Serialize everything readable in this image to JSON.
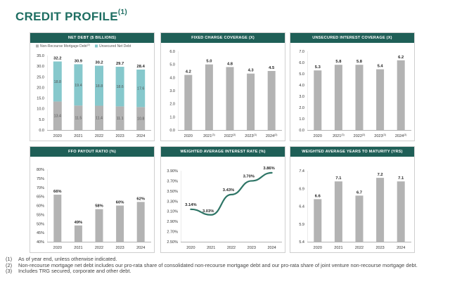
{
  "title": "CREDIT PROFILE",
  "title_sup": "(1)",
  "colors": {
    "accent": "#1e6e62",
    "header": "#1f5f57",
    "bar": "#b3b3b3",
    "teal": "#86c8cc",
    "line": "#2e7566"
  },
  "chart_data": [
    {
      "id": "net-debt",
      "type": "stacked-bar",
      "title": "NET DEBT ($ BILLIONS)",
      "categories": [
        "2020",
        "2021",
        "2022",
        "2023",
        "2024"
      ],
      "legend": [
        "Non-Recourse Mortgage Debt",
        "Unsecured Net Debt"
      ],
      "legend_sup": "(2)",
      "series": [
        {
          "name": "Non-Recourse Mortgage Debt",
          "values": [
            13.4,
            11.5,
            11.4,
            11.1,
            10.8
          ],
          "labels": [
            "13.4",
            "11.5",
            "11.4",
            "11.1",
            "10.8"
          ]
        },
        {
          "name": "Unsecured Net Debt",
          "values": [
            18.8,
            19.4,
            18.8,
            18.6,
            17.6
          ],
          "labels": [
            "18.8",
            "19.4",
            "18.8",
            "18.6",
            "17.6"
          ]
        }
      ],
      "totals": [
        "32.2",
        "30.9",
        "30.2",
        "29.7",
        "28.4"
      ],
      "ylim": [
        0,
        35
      ],
      "ticks": [
        0,
        5,
        10,
        15,
        20,
        25,
        30,
        35
      ],
      "tick_labels": [
        "0.0",
        "5.0",
        "10.0",
        "15.0",
        "20.0",
        "25.0",
        "30.0",
        "35.0"
      ]
    },
    {
      "id": "fixed-charge",
      "type": "bar",
      "title": "FIXED CHARGE COVERAGE (X)",
      "categories": [
        "2020",
        "2021",
        "2022",
        "2023",
        "2024"
      ],
      "category_sups": [
        "",
        "(3)",
        "(3)",
        "(3)",
        "(3)"
      ],
      "values": [
        4.2,
        5.0,
        4.8,
        4.3,
        4.5
      ],
      "labels": [
        "4.2",
        "5.0",
        "4.8",
        "4.3",
        "4.5"
      ],
      "ylim": [
        0,
        6
      ],
      "ticks": [
        0,
        1,
        2,
        3,
        4,
        5,
        6
      ],
      "tick_labels": [
        "0.0",
        "1.0",
        "2.0",
        "3.0",
        "4.0",
        "5.0",
        "6.0"
      ]
    },
    {
      "id": "unsecured-interest",
      "type": "bar",
      "title": "UNSECURED INTEREST COVERAGE (X)",
      "categories": [
        "2020",
        "2021",
        "2022",
        "2023",
        "2024"
      ],
      "category_sups": [
        "",
        "(3)",
        "(3)",
        "(3)",
        "(3)"
      ],
      "values": [
        5.3,
        5.8,
        5.8,
        5.4,
        6.2
      ],
      "labels": [
        "5.3",
        "5.8",
        "5.8",
        "5.4",
        "6.2"
      ],
      "ylim": [
        0,
        7
      ],
      "ticks": [
        0,
        1,
        2,
        3,
        4,
        5,
        6,
        7
      ],
      "tick_labels": [
        "0.0",
        "1.0",
        "2.0",
        "3.0",
        "4.0",
        "5.0",
        "6.0",
        "7.0"
      ]
    },
    {
      "id": "ffo-payout",
      "type": "bar",
      "title": "FFO PAYOUT RATIO (%)",
      "categories": [
        "2020",
        "2021",
        "2022",
        "2023",
        "2024"
      ],
      "values": [
        66,
        49,
        58,
        60,
        62
      ],
      "labels": [
        "66%",
        "49%",
        "58%",
        "60%",
        "62%"
      ],
      "ylim": [
        40,
        80
      ],
      "ticks": [
        40,
        45,
        50,
        55,
        60,
        65,
        70,
        75,
        80
      ],
      "tick_labels": [
        "40%",
        "45%",
        "50%",
        "55%",
        "60%",
        "65%",
        "70%",
        "75%",
        "80%"
      ]
    },
    {
      "id": "interest-rate",
      "type": "line",
      "title": "WEIGHTED AVERAGE INTEREST RATE (%)",
      "categories": [
        "2020",
        "2021",
        "2022",
        "2023",
        "2024"
      ],
      "values": [
        3.14,
        3.03,
        3.43,
        3.7,
        3.86
      ],
      "labels": [
        "3.14%",
        "3.03%",
        "3.43%",
        "3.70%",
        "3.86%"
      ],
      "ylim": [
        2.5,
        3.9
      ],
      "ticks": [
        2.5,
        2.7,
        2.9,
        3.1,
        3.3,
        3.5,
        3.7,
        3.9
      ],
      "tick_labels": [
        "2.50%",
        "2.70%",
        "2.90%",
        "3.10%",
        "3.30%",
        "3.50%",
        "3.70%",
        "3.90%"
      ]
    },
    {
      "id": "years-maturity",
      "type": "bar",
      "title": "WEIGHTED AVERAGE YEARS TO MATURITY (YRS)",
      "categories": [
        "2020",
        "2021",
        "2022",
        "2023",
        "2024"
      ],
      "values": [
        6.6,
        7.1,
        6.7,
        7.2,
        7.1
      ],
      "labels": [
        "6.6",
        "7.1",
        "6.7",
        "7.2",
        "7.1"
      ],
      "ylim": [
        5.4,
        7.4
      ],
      "ticks": [
        5.4,
        5.9,
        6.4,
        6.9,
        7.4
      ],
      "tick_labels": [
        "5.4",
        "5.9",
        "6.4",
        "6.9",
        "7.4"
      ]
    }
  ],
  "footnotes": [
    {
      "num": "(1)",
      "text": "As of year end, unless otherwise indicated."
    },
    {
      "num": "(2)",
      "text": "Non-recourse mortgage net debt includes our pro-rata share of consolidated non-recourse mortgage debt and our pro-rata share of joint venture non-recourse mortgage debt."
    },
    {
      "num": "(3)",
      "text": "Includes TRG secured, corporate and other debt."
    }
  ]
}
